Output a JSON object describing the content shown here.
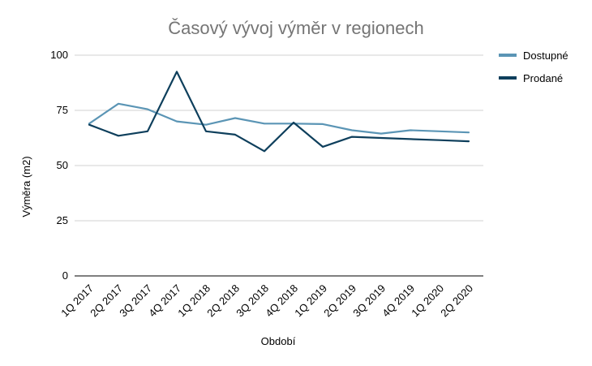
{
  "chart_data": {
    "type": "line",
    "title": "Časový vývoj výměr v regionech",
    "xlabel": "Období",
    "ylabel": "Výměra (m2)",
    "ylim": [
      0,
      100
    ],
    "yticks": [
      0,
      25,
      50,
      75,
      100
    ],
    "ytick_labels": [
      "0",
      "25",
      "50",
      "75",
      "100"
    ],
    "grid": "horizontal",
    "legend_position": "right",
    "categories": [
      "1Q 2017",
      "2Q 2017",
      "3Q 2017",
      "4Q 2017",
      "1Q 2018",
      "2Q 2018",
      "3Q 2018",
      "4Q 2018",
      "1Q 2019",
      "2Q 2019",
      "3Q 2019",
      "4Q 2019",
      "1Q 2020",
      "2Q 2020"
    ],
    "series": [
      {
        "name": "Dostupné",
        "color": "#5b95b5",
        "values": [
          69,
          78,
          75.5,
          70,
          68.5,
          71.5,
          69,
          69,
          68.8,
          66,
          64.5,
          66,
          65.5,
          65
        ]
      },
      {
        "name": "Prodané",
        "color": "#0e3f5c",
        "values": [
          68.5,
          63.5,
          65.5,
          92.5,
          65.5,
          64,
          56.5,
          69.5,
          58.5,
          63,
          62.5,
          62,
          61.5,
          61
        ]
      }
    ]
  }
}
